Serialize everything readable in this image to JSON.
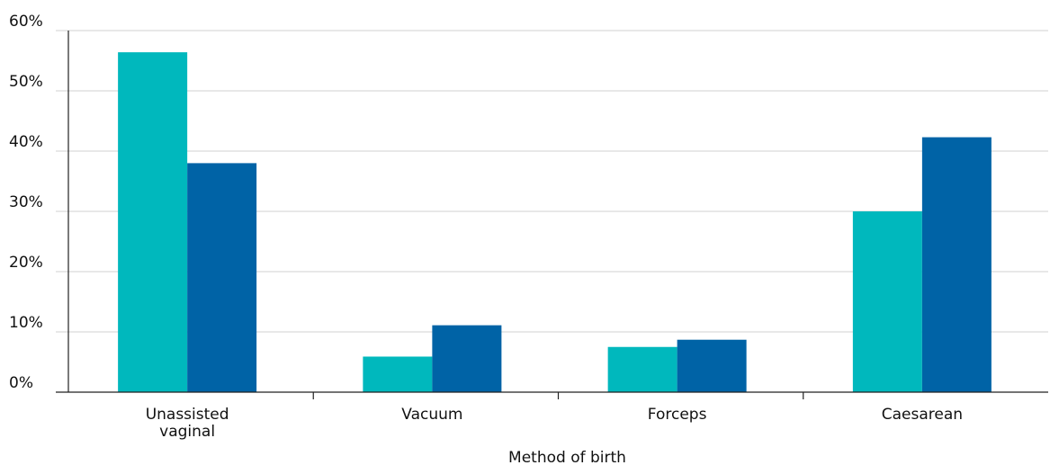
{
  "chart_data": {
    "type": "bar",
    "categories": [
      "Unassisted vaginal",
      "Vacuum",
      "Forceps",
      "Caesarean"
    ],
    "category_lines": [
      [
        "Unassisted",
        "vaginal"
      ],
      [
        "Vacuum"
      ],
      [
        "Forceps"
      ],
      [
        "Caesarean"
      ]
    ],
    "series": [
      {
        "values": [
          56.4,
          5.9,
          7.5,
          30.0
        ],
        "color": "#00b8bd"
      },
      {
        "values": [
          38.0,
          11.1,
          8.7,
          42.3
        ],
        "color": "#0063a6"
      }
    ],
    "xlabel": "Method of birth",
    "ylabel": "",
    "ylim": [
      0,
      60
    ],
    "y_ticks": [
      "0%",
      "10%",
      "20%",
      "30%",
      "40%",
      "50%",
      "60%"
    ],
    "y_tick_values": [
      0,
      10,
      20,
      30,
      40,
      50,
      60
    ],
    "grid": true
  }
}
